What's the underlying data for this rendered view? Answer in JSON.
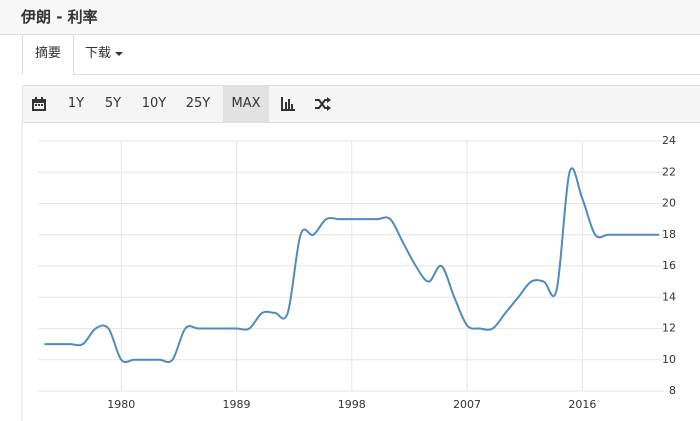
{
  "header": {
    "title": "伊朗 - 利率"
  },
  "tabs": [
    "摘要",
    "下载"
  ],
  "toolbar": [
    "1Y",
    "5Y",
    "10Y",
    "25Y",
    "MAX"
  ],
  "chart_data": {
    "type": "line",
    "color": "#4f8bc0",
    "x": [
      1974,
      1975,
      1976,
      1977,
      1978,
      1979,
      1980,
      1981,
      1982,
      1983,
      1984,
      1985,
      1986,
      1987,
      1988,
      1989,
      1990,
      1991,
      1992,
      1993,
      1994,
      1995,
      1996,
      1997,
      1998,
      1999,
      2000,
      2001,
      2002,
      2003,
      2004,
      2005,
      2006,
      2007,
      2008,
      2009,
      2010,
      2011,
      2012,
      2013,
      2014,
      2015,
      2016,
      2017,
      2018,
      2019,
      2020,
      2021,
      2022
    ],
    "values": [
      11,
      11,
      11,
      11,
      12,
      12,
      10,
      10,
      10,
      10,
      10,
      12,
      12,
      12,
      12,
      12,
      12,
      13,
      13,
      13,
      18,
      18,
      19,
      19,
      19,
      19,
      19,
      19,
      17.5,
      16,
      15,
      16,
      14,
      12.2,
      12,
      12,
      13,
      14,
      15,
      15,
      14.5,
      22,
      20.3,
      18,
      18,
      18,
      18,
      18,
      18
    ],
    "xlim": [
      1973.5,
      2023
    ],
    "ylim": [
      8,
      24
    ],
    "xticks": [
      1980,
      1989,
      1998,
      2007,
      2016
    ],
    "yticks": [
      8,
      10,
      12,
      14,
      16,
      18,
      20,
      22,
      24
    ],
    "grid": true
  }
}
